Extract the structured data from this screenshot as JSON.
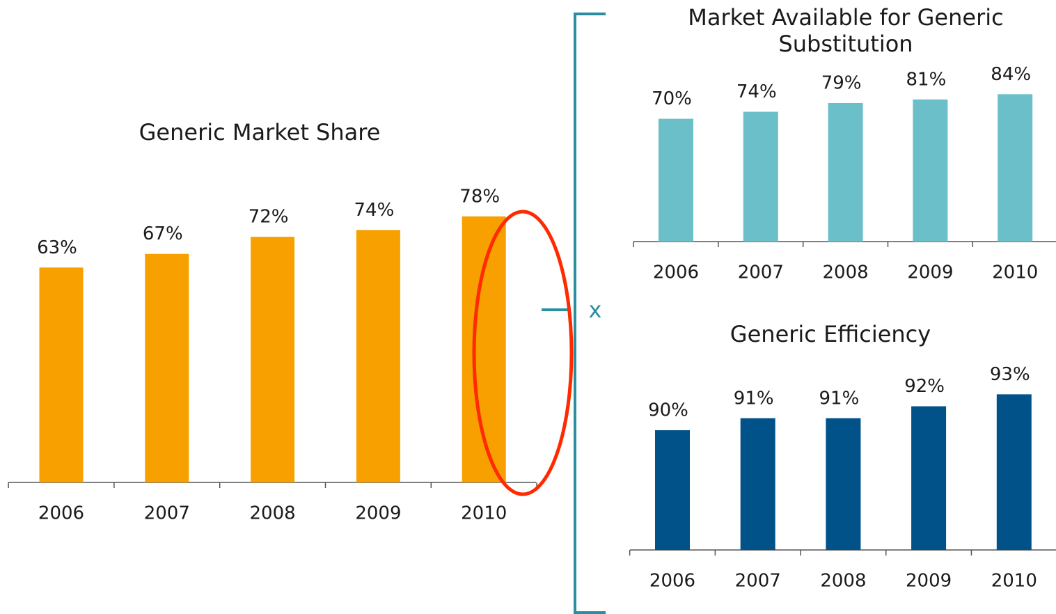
{
  "chart_data": [
    {
      "type": "bar",
      "title": [
        "Generic Market Share"
      ],
      "categories": [
        "2006",
        "2007",
        "2008",
        "2009",
        "2010"
      ],
      "values": [
        63,
        67,
        72,
        74,
        78
      ],
      "value_labels": [
        "63%",
        "67%",
        "72%",
        "74%",
        "78%"
      ],
      "color": "#f7a000",
      "ylim": [
        0,
        100
      ]
    },
    {
      "type": "bar",
      "title": [
        "Market Available for Generic",
        "Substitution"
      ],
      "categories": [
        "2006",
        "2007",
        "2008",
        "2009",
        "2010"
      ],
      "values": [
        70,
        74,
        79,
        81,
        84
      ],
      "value_labels": [
        "70%",
        "74%",
        "79%",
        "81%",
        "84%"
      ],
      "color": "#6bbfc8",
      "ylim": [
        0,
        100
      ]
    },
    {
      "type": "bar",
      "title": [
        "Generic Efficiency"
      ],
      "categories": [
        "2006",
        "2007",
        "2008",
        "2009",
        "2010"
      ],
      "values": [
        90,
        91,
        91,
        92,
        93
      ],
      "value_labels": [
        "90%",
        "91%",
        "91%",
        "92%",
        "93%"
      ],
      "color": "#005288",
      "ylim": [
        80,
        95
      ]
    }
  ],
  "operator": "x"
}
